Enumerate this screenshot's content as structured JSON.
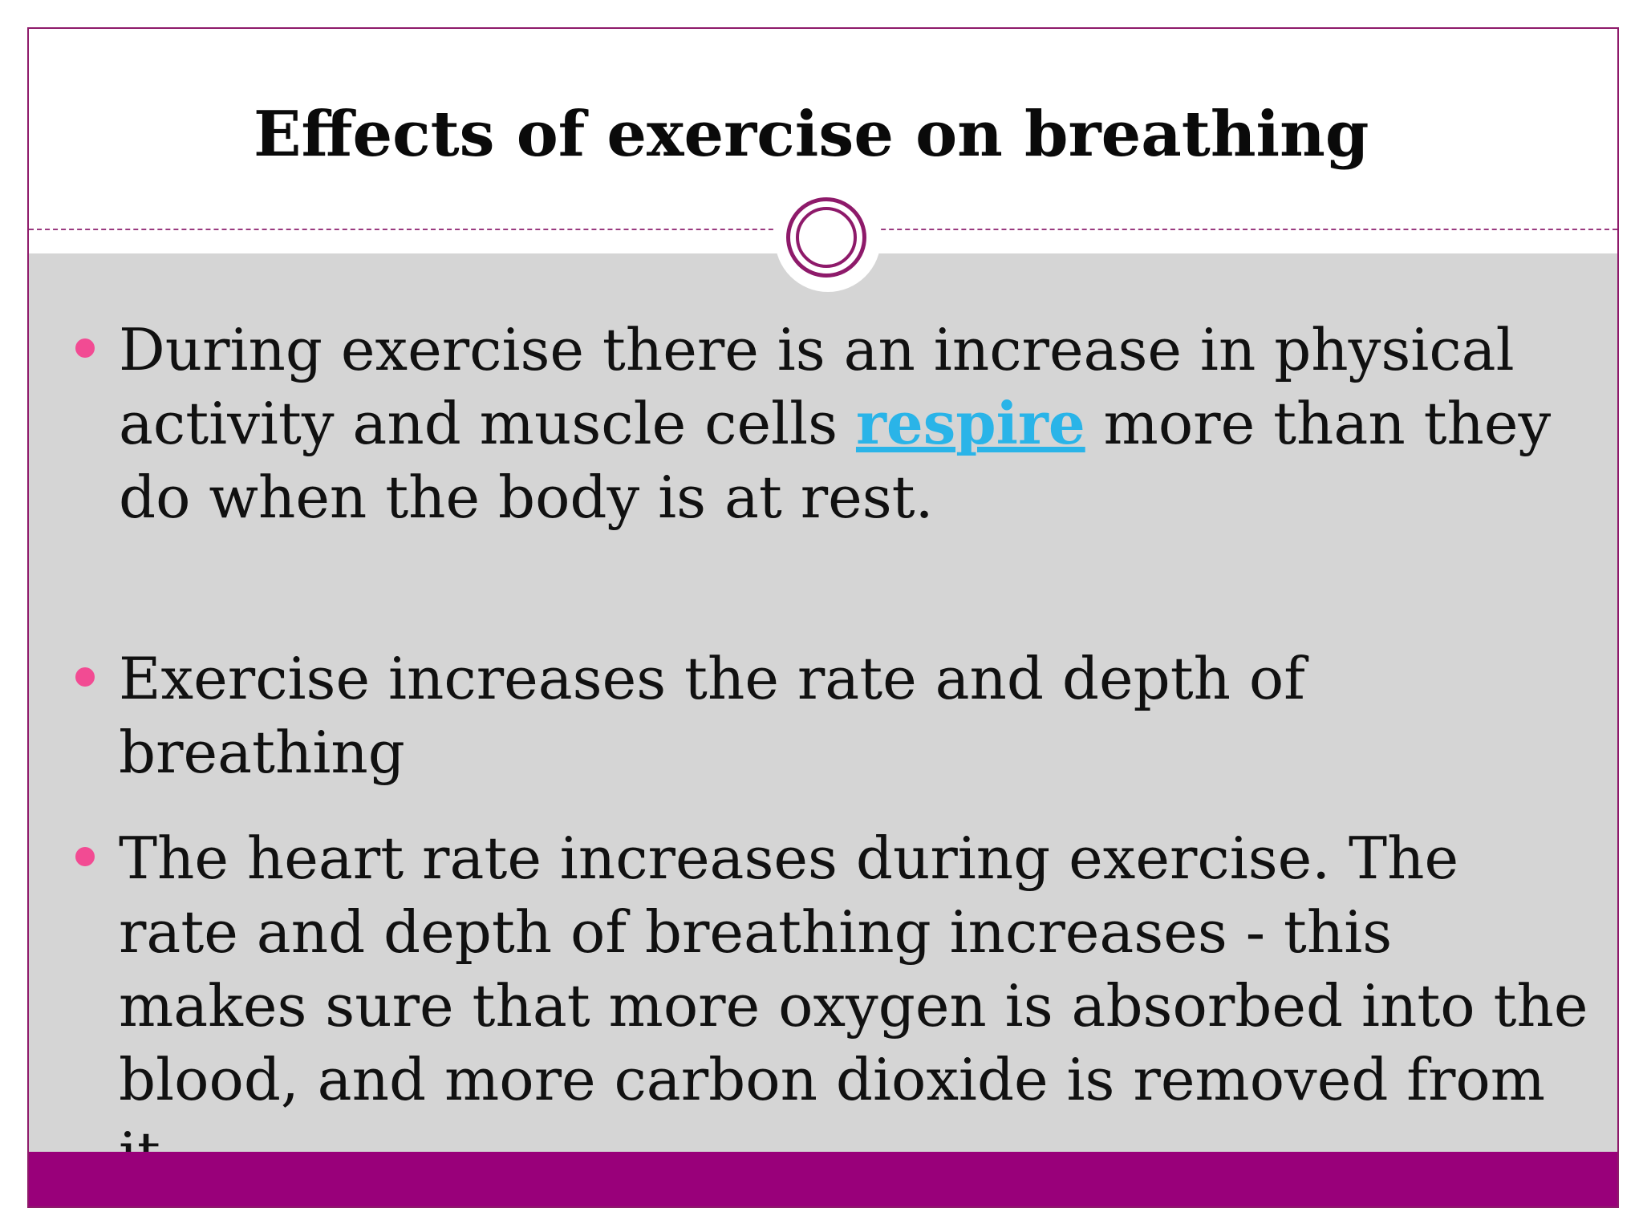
{
  "slide": {
    "title": "Effects of exercise on breathing",
    "bullets": [
      {
        "before": "During exercise there is an increase in physical activity and muscle cells ",
        "link": "respire",
        "after": " more than they do when the body is at rest."
      },
      {
        "text": "Exercise increases the rate and depth of breathing"
      },
      {
        "text": "The heart rate increases during exercise. The rate and depth of breathing increases - this makes sure that more oxygen is absorbed into the blood, and more carbon dioxide is removed from it."
      }
    ]
  },
  "colors": {
    "accent": "#99007a",
    "border": "#8e1a6a",
    "bullet": "#f24b93",
    "link": "#2ab4e8",
    "content_bg": "#d5d5d5"
  },
  "icons": {
    "divider": "double-circle-ornament-icon",
    "bullet": "dot-bullet-icon"
  }
}
